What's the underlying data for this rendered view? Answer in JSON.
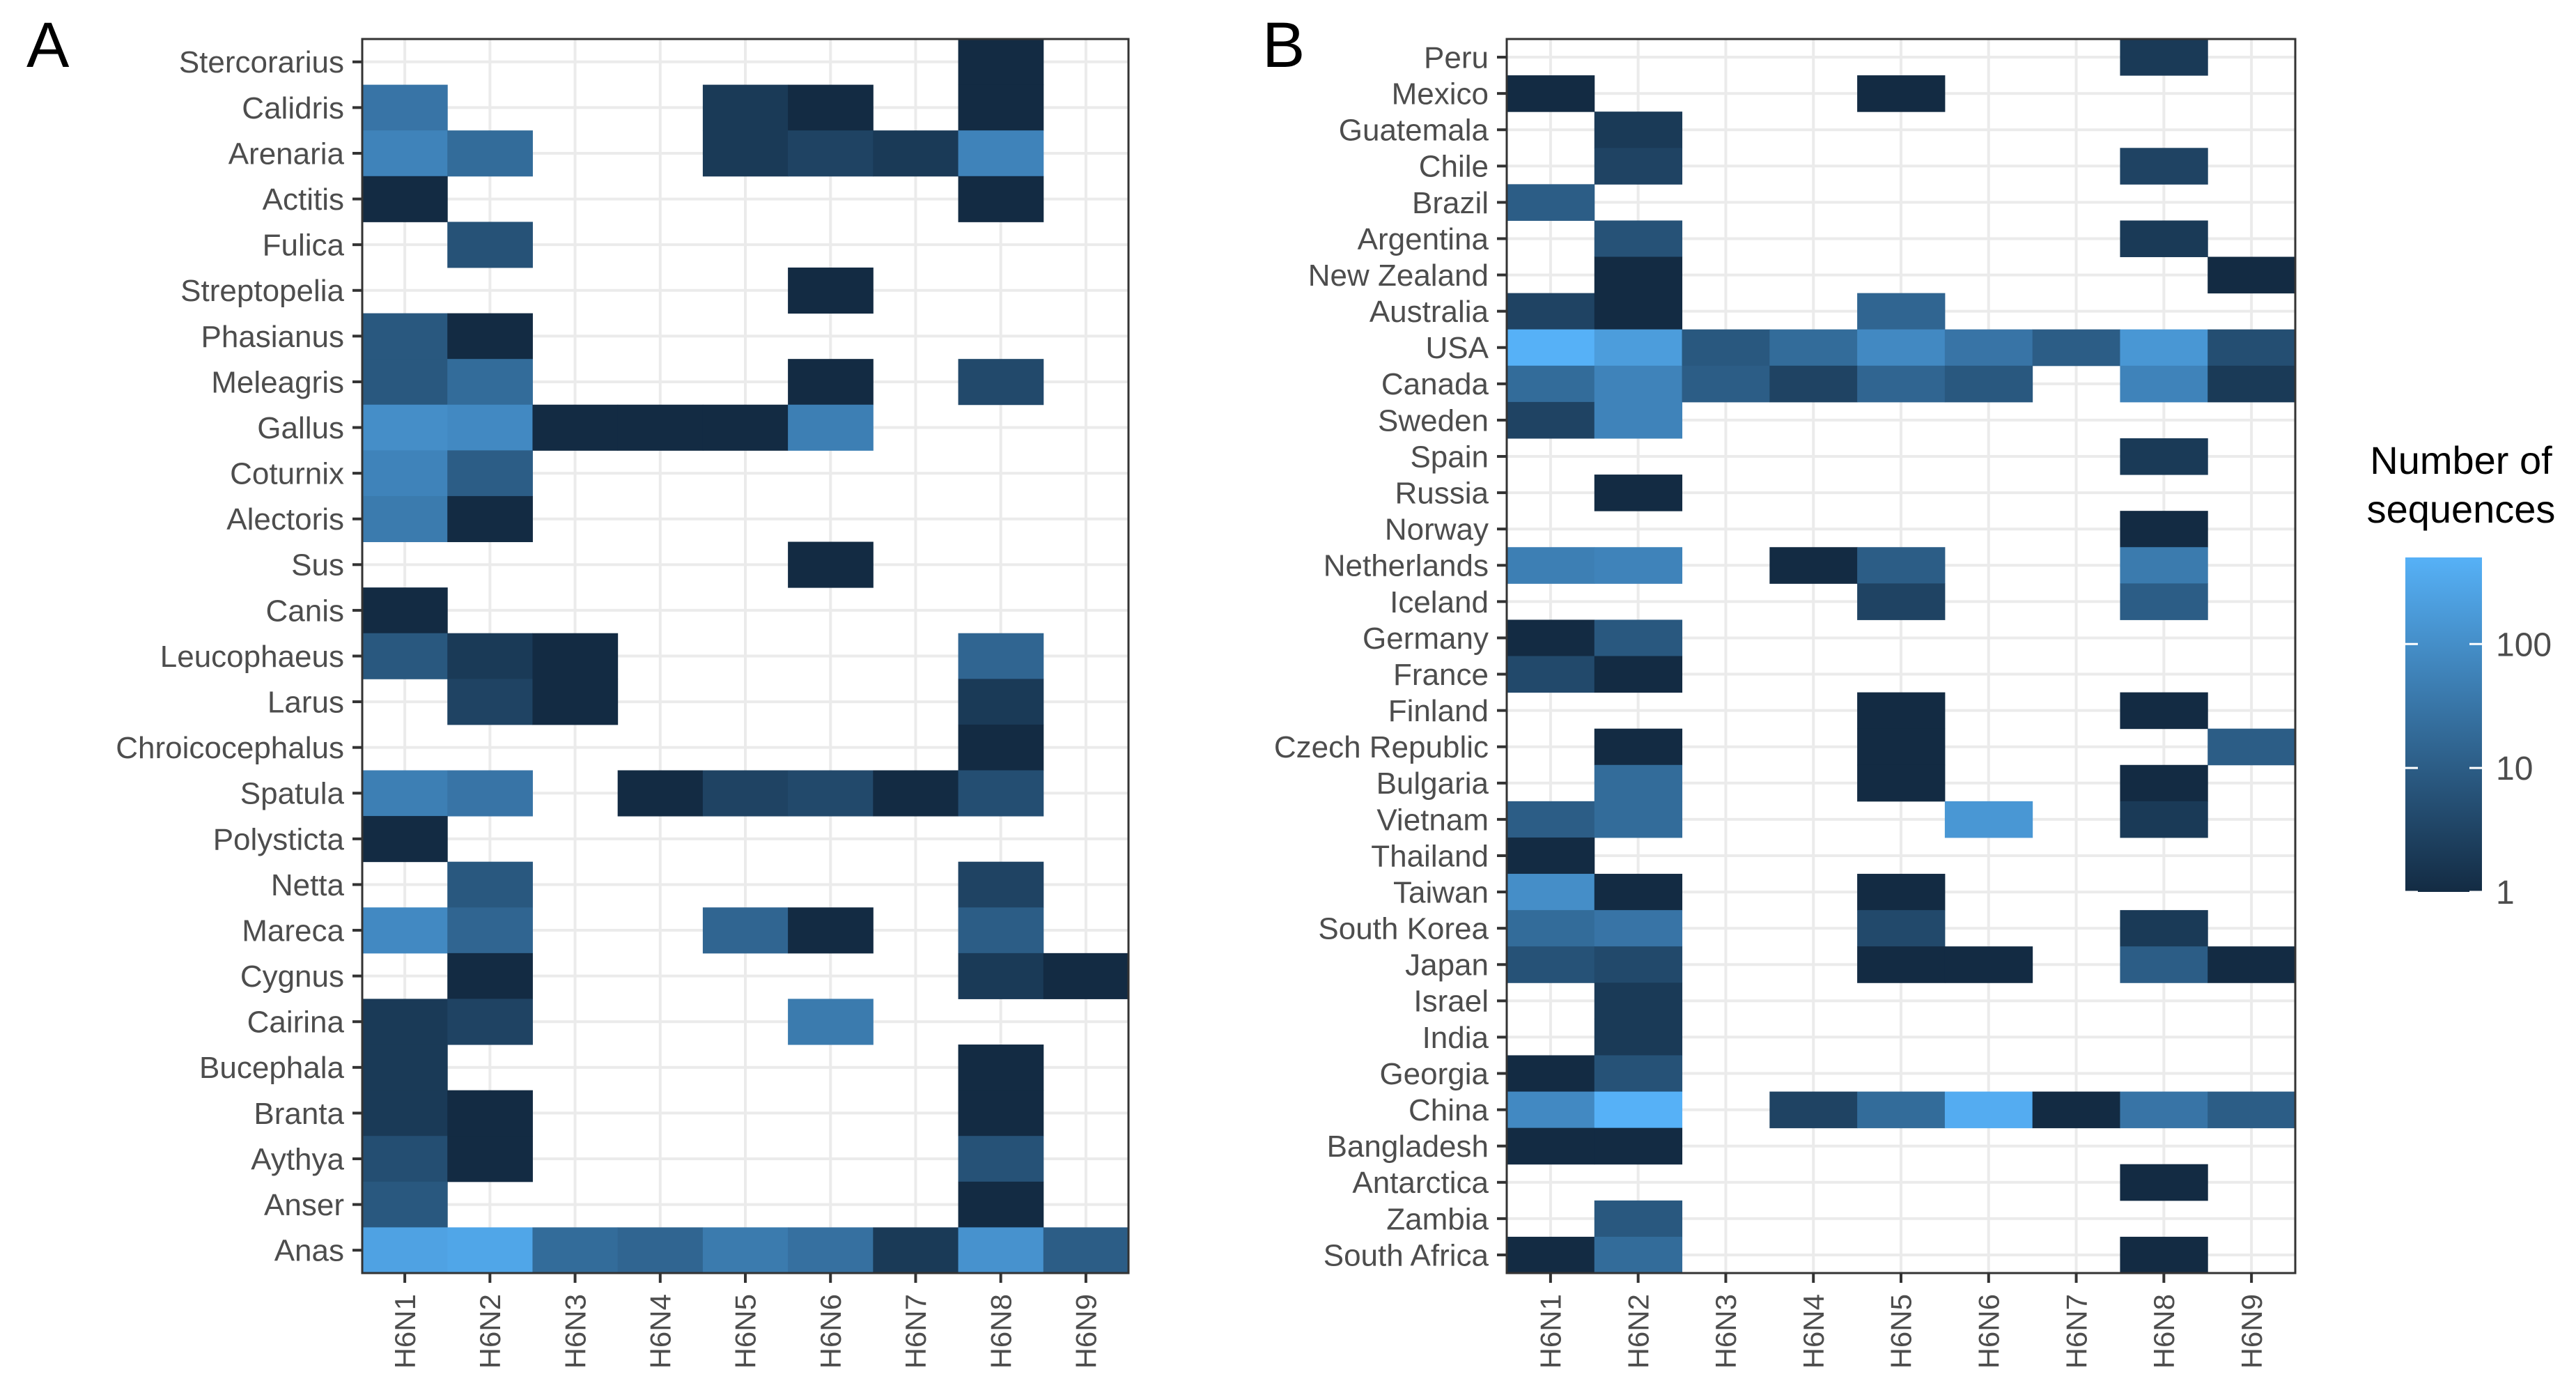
{
  "chart_data": [
    {
      "type": "heatmap",
      "panel_label": "A",
      "title": "",
      "xlabel": "",
      "ylabel": "",
      "x": [
        "H6N1",
        "H6N2",
        "H6N3",
        "H6N4",
        "H6N5",
        "H6N6",
        "H6N7",
        "H6N8",
        "H6N9"
      ],
      "y": [
        "Stercorarius",
        "Calidris",
        "Arenaria",
        "Actitis",
        "Fulica",
        "Streptopelia",
        "Phasianus",
        "Meleagris",
        "Gallus",
        "Coturnix",
        "Alectoris",
        "Sus",
        "Canis",
        "Leucophaeus",
        "Larus",
        "Chroicocephalus",
        "Spatula",
        "Polysticta",
        "Netta",
        "Mareca",
        "Cygnus",
        "Cairina",
        "Bucephala",
        "Branta",
        "Aythya",
        "Anser",
        "Anas"
      ],
      "values": [
        [
          null,
          null,
          null,
          null,
          null,
          null,
          null,
          1,
          null
        ],
        [
          30,
          null,
          null,
          null,
          2,
          1,
          null,
          1,
          null
        ],
        [
          60,
          20,
          null,
          null,
          2,
          3,
          2,
          60,
          null
        ],
        [
          1,
          null,
          null,
          null,
          null,
          null,
          null,
          1,
          null
        ],
        [
          null,
          6,
          null,
          null,
          null,
          null,
          null,
          null,
          null
        ],
        [
          null,
          null,
          null,
          null,
          null,
          1,
          null,
          null,
          null
        ],
        [
          8,
          1,
          null,
          null,
          null,
          null,
          null,
          null,
          null
        ],
        [
          8,
          20,
          null,
          null,
          null,
          1,
          null,
          4,
          null
        ],
        [
          100,
          80,
          1,
          1,
          1,
          50,
          null,
          null,
          null
        ],
        [
          60,
          10,
          null,
          null,
          null,
          null,
          null,
          null,
          null
        ],
        [
          40,
          1,
          null,
          null,
          null,
          null,
          null,
          null,
          null
        ],
        [
          null,
          null,
          null,
          null,
          null,
          1,
          null,
          null,
          null
        ],
        [
          1,
          null,
          null,
          null,
          null,
          null,
          null,
          null,
          null
        ],
        [
          8,
          2,
          1,
          null,
          null,
          null,
          null,
          15,
          null
        ],
        [
          null,
          3,
          1,
          null,
          null,
          null,
          null,
          2,
          null
        ],
        [
          null,
          null,
          null,
          null,
          null,
          null,
          null,
          1,
          null
        ],
        [
          50,
          30,
          null,
          1,
          3,
          4,
          1,
          5,
          null
        ],
        [
          1,
          null,
          null,
          null,
          null,
          null,
          null,
          null,
          null
        ],
        [
          null,
          8,
          null,
          null,
          null,
          null,
          null,
          3,
          null
        ],
        [
          80,
          15,
          null,
          null,
          15,
          1,
          null,
          10,
          null
        ],
        [
          null,
          1,
          null,
          null,
          null,
          null,
          null,
          2,
          1
        ],
        [
          2,
          3,
          null,
          null,
          null,
          40,
          null,
          null,
          null
        ],
        [
          2,
          null,
          null,
          null,
          null,
          null,
          null,
          1,
          null
        ],
        [
          2,
          1,
          null,
          null,
          null,
          null,
          null,
          1,
          null
        ],
        [
          5,
          1,
          null,
          null,
          null,
          null,
          null,
          6,
          null
        ],
        [
          8,
          null,
          null,
          null,
          null,
          null,
          null,
          1,
          null
        ],
        [
          250,
          300,
          20,
          15,
          40,
          25,
          2,
          120,
          10
        ]
      ]
    },
    {
      "type": "heatmap",
      "panel_label": "B",
      "title": "",
      "xlabel": "",
      "ylabel": "",
      "x": [
        "H6N1",
        "H6N2",
        "H6N3",
        "H6N4",
        "H6N5",
        "H6N6",
        "H6N7",
        "H6N8",
        "H6N9"
      ],
      "y": [
        "Peru",
        "Mexico",
        "Guatemala",
        "Chile",
        "Brazil",
        "Argentina",
        "New Zealand",
        "Australia",
        "USA",
        "Canada",
        "Sweden",
        "Spain",
        "Russia",
        "Norway",
        "Netherlands",
        "Iceland",
        "Germany",
        "France",
        "Finland",
        "Czech Republic",
        "Bulgaria",
        "Vietnam",
        "Thailand",
        "Taiwan",
        "South Korea",
        "Japan",
        "Israel",
        "India",
        "Georgia",
        "China",
        "Bangladesh",
        "Antarctica",
        "Zambia",
        "South Africa"
      ],
      "values": [
        [
          null,
          null,
          null,
          null,
          null,
          null,
          null,
          2,
          null
        ],
        [
          1,
          null,
          null,
          null,
          1,
          null,
          null,
          null,
          null
        ],
        [
          null,
          2,
          null,
          null,
          null,
          null,
          null,
          null,
          null
        ],
        [
          null,
          3,
          null,
          null,
          null,
          null,
          null,
          3,
          null
        ],
        [
          10,
          null,
          null,
          null,
          null,
          null,
          null,
          null,
          null
        ],
        [
          null,
          6,
          null,
          null,
          null,
          null,
          null,
          2,
          null
        ],
        [
          null,
          1,
          null,
          null,
          null,
          null,
          null,
          null,
          1
        ],
        [
          3,
          1,
          null,
          null,
          15,
          null,
          null,
          null,
          null
        ],
        [
          500,
          200,
          8,
          20,
          80,
          30,
          10,
          150,
          5
        ],
        [
          20,
          60,
          10,
          3,
          15,
          8,
          null,
          60,
          2
        ],
        [
          3,
          60,
          null,
          null,
          null,
          null,
          null,
          null,
          null
        ],
        [
          null,
          null,
          null,
          null,
          null,
          null,
          null,
          2,
          null
        ],
        [
          null,
          1,
          null,
          null,
          null,
          null,
          null,
          null,
          null
        ],
        [
          null,
          null,
          null,
          null,
          null,
          null,
          null,
          1,
          null
        ],
        [
          50,
          60,
          null,
          1,
          10,
          null,
          null,
          40,
          null
        ],
        [
          null,
          null,
          null,
          null,
          3,
          null,
          null,
          10,
          null
        ],
        [
          1,
          8,
          null,
          null,
          null,
          null,
          null,
          null,
          null
        ],
        [
          4,
          1,
          null,
          null,
          null,
          null,
          null,
          null,
          null
        ],
        [
          null,
          null,
          null,
          null,
          1,
          null,
          null,
          1,
          null
        ],
        [
          null,
          1,
          null,
          null,
          1,
          null,
          null,
          null,
          10
        ],
        [
          null,
          20,
          null,
          null,
          1,
          null,
          null,
          1,
          null
        ],
        [
          10,
          20,
          null,
          null,
          null,
          150,
          null,
          2,
          null
        ],
        [
          1,
          null,
          null,
          null,
          null,
          null,
          null,
          null,
          null
        ],
        [
          100,
          1,
          null,
          null,
          1,
          null,
          null,
          null,
          null
        ],
        [
          20,
          30,
          null,
          null,
          4,
          null,
          null,
          2,
          null
        ],
        [
          6,
          4,
          null,
          null,
          1,
          1,
          null,
          10,
          1
        ],
        [
          null,
          2,
          null,
          null,
          null,
          null,
          null,
          null,
          null
        ],
        [
          null,
          2,
          null,
          null,
          null,
          null,
          null,
          null,
          null
        ],
        [
          1,
          6,
          null,
          null,
          null,
          null,
          null,
          null,
          null
        ],
        [
          80,
          500,
          null,
          3,
          20,
          400,
          1,
          30,
          10
        ],
        [
          1,
          1,
          null,
          null,
          null,
          null,
          null,
          null,
          null
        ],
        [
          null,
          null,
          null,
          null,
          null,
          null,
          null,
          1,
          null
        ],
        [
          null,
          8,
          null,
          null,
          null,
          null,
          null,
          null,
          null
        ],
        [
          1,
          20,
          null,
          null,
          null,
          null,
          null,
          1,
          null
        ]
      ]
    }
  ],
  "legend": {
    "title_line1": "Number of",
    "title_line2": "sequences",
    "scale": "log10",
    "range": [
      1,
      500
    ],
    "ticks": [
      {
        "value": 100,
        "label": "100"
      },
      {
        "value": 10,
        "label": "10"
      },
      {
        "value": 1,
        "label": "1"
      }
    ],
    "color_low": "#132B43",
    "color_high": "#56B1F7"
  },
  "grid_color": "#ebebeb",
  "panel_border_color": "#333333"
}
